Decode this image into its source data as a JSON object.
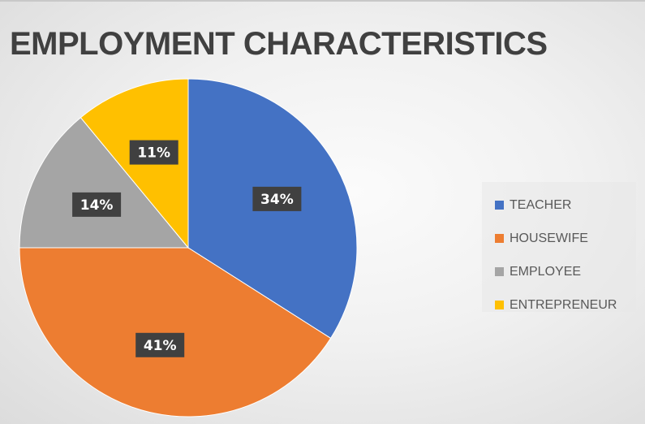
{
  "chart_data": {
    "type": "pie",
    "title": "EMPLOYMENT CHARACTERISTICS",
    "categories": [
      "TEACHER",
      "HOUSEWIFE",
      "EMPLOYEE",
      "ENTREPRENEUR"
    ],
    "values": [
      34,
      41,
      14,
      11
    ],
    "data_labels": [
      "34%",
      "41%",
      "14%",
      "11%"
    ],
    "colors": [
      "#4472c4",
      "#ed7d31",
      "#a5a5a5",
      "#ffc000"
    ],
    "legend": {
      "placement": "right",
      "entries": [
        "TEACHER",
        "HOUSEWIFE",
        "EMPLOYEE",
        "ENTREPRENEUR"
      ]
    }
  }
}
